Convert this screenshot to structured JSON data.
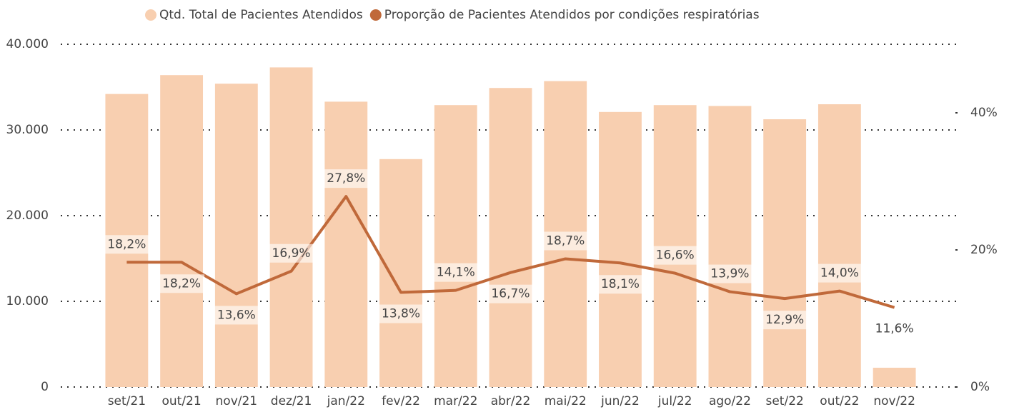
{
  "chart_data": {
    "type": "bar-line",
    "categories": [
      "set/21",
      "out/21",
      "nov/21",
      "dez/21",
      "jan/22",
      "fev/22",
      "mar/22",
      "abr/22",
      "mai/22",
      "jun/22",
      "jul/22",
      "ago/22",
      "set/22",
      "out/22",
      "nov/22"
    ],
    "series": [
      {
        "name": "Qtd. Total de Pacientes Atendidos",
        "type": "bar",
        "color": "#f8cfb0",
        "values": [
          34200,
          36400,
          35400,
          37300,
          33300,
          26600,
          32900,
          34900,
          35700,
          32100,
          32900,
          32800,
          31250,
          33000,
          2250
        ]
      },
      {
        "name": "Proporção de Pacientes Atendidos por condições respiratórias",
        "type": "line",
        "axis": "y2",
        "color": "#c0693a",
        "values": [
          18.2,
          18.2,
          13.6,
          16.9,
          27.8,
          13.8,
          14.1,
          16.7,
          18.7,
          18.1,
          16.6,
          13.9,
          12.9,
          14.0,
          11.6
        ],
        "value_labels": [
          "18,2%",
          "18,2%",
          "13,6%",
          "16,9%",
          "27,8%",
          "13,8%",
          "14,1%",
          "16,7%",
          "18,7%",
          "18,1%",
          "16,6%",
          "13,9%",
          "12,9%",
          "14,0%",
          "11,6%"
        ]
      }
    ],
    "ylim": [
      0,
      40000
    ],
    "yticks": [
      0,
      {
        "value": 10000,
        "label": "10.000"
      },
      {
        "value": 20000,
        "label": "20.000"
      },
      {
        "value": 30000,
        "label": "30.000"
      },
      {
        "value": 40000,
        "label": "40.000"
      }
    ],
    "y2lim": [
      0,
      50
    ],
    "y2ticks": [
      {
        "value": 0,
        "label": "0%"
      },
      {
        "value": 20,
        "label": "20%"
      },
      {
        "value": 40,
        "label": "40%"
      }
    ],
    "grid": true,
    "legend": "top"
  }
}
